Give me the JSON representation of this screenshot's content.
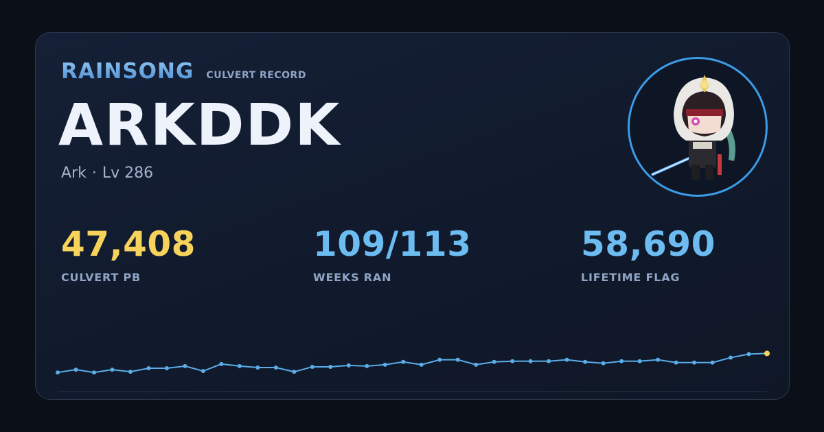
{
  "brand": {
    "title": "RAINSONG",
    "subtitle": "CULVERT RECORD"
  },
  "player": {
    "name": "ARKDDK",
    "class": "Ark",
    "separator": "·",
    "level": "Lv 286"
  },
  "stats": [
    {
      "value": "47,408",
      "label": "CULVERT PB",
      "color": "#f8d35c"
    },
    {
      "value": "109/113",
      "label": "WEEKS RAN",
      "color": "#6cbcf2"
    },
    {
      "value": "58,690",
      "label": "LIFETIME FLAG",
      "color": "#6cbcf2"
    }
  ],
  "colors": {
    "line": "#5aaeea",
    "highlight": "#f8d35c",
    "avatar_ring": "#3d9ce8"
  },
  "chart_data": {
    "type": "line",
    "values": [
      27,
      31,
      27,
      31,
      28,
      33,
      33,
      36,
      29,
      39,
      36,
      34,
      34,
      28,
      35,
      35,
      37,
      36,
      38,
      42,
      38,
      45,
      45,
      38,
      42,
      43,
      43,
      43,
      45,
      42,
      40,
      43,
      43,
      45,
      41,
      41,
      41,
      48,
      53,
      54
    ]
  }
}
